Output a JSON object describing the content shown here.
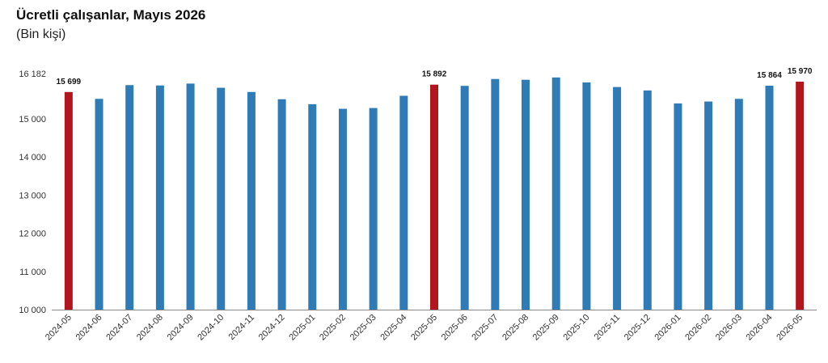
{
  "title": "Ücretli çalışanlar, Mayıs 2026",
  "subtitle": "(Bin kişi)",
  "chart_data": {
    "type": "bar",
    "categories": [
      "2024-05",
      "2024-06",
      "2024-07",
      "2024-08",
      "2024-09",
      "2024-10",
      "2024-11",
      "2024-12",
      "2025-01",
      "2025-02",
      "2025-03",
      "2025-04",
      "2025-05",
      "2025-06",
      "2025-07",
      "2025-08",
      "2025-09",
      "2025-10",
      "2025-11",
      "2025-12",
      "2026-01",
      "2026-02",
      "2026-03",
      "2026-04",
      "2026-05"
    ],
    "values": [
      15699,
      15520,
      15880,
      15870,
      15920,
      15810,
      15700,
      15510,
      15380,
      15260,
      15280,
      15600,
      15892,
      15860,
      16040,
      16020,
      16080,
      15950,
      15830,
      15740,
      15400,
      15450,
      15520,
      15864,
      15970
    ],
    "highlight": [
      true,
      false,
      false,
      false,
      false,
      false,
      false,
      false,
      false,
      false,
      false,
      false,
      true,
      false,
      false,
      false,
      false,
      false,
      false,
      false,
      false,
      false,
      false,
      false,
      true
    ],
    "data_labels": [
      "15 699",
      "",
      "",
      "",
      "",
      "",
      "",
      "",
      "",
      "",
      "",
      "",
      "15 892",
      "",
      "",
      "",
      "",
      "",
      "",
      "",
      "",
      "",
      "",
      "15 864",
      "15 970"
    ],
    "y_ticks": [
      10000,
      11000,
      12000,
      13000,
      14000,
      15000,
      16182
    ],
    "y_tick_labels": [
      "10 000",
      "11 000",
      "12 000",
      "13 000",
      "14 000",
      "15 000",
      "16 182"
    ],
    "ylim": [
      10000,
      16182
    ],
    "colors": {
      "bar": "#2e7bb6",
      "highlight": "#b2161c",
      "axis": "#888888"
    },
    "grid": false,
    "legend": "none"
  }
}
